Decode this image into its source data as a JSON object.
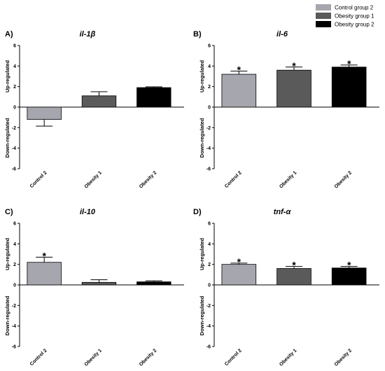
{
  "legend": [
    {
      "label": "Control group 2",
      "color": "#a6a6ae"
    },
    {
      "label": "Obesity group 1",
      "color": "#5a5a5a"
    },
    {
      "label": "Obesity group 2",
      "color": "#000000"
    }
  ],
  "chart_data": [
    {
      "type": "bar",
      "panel": "A)",
      "title": "il-1β",
      "categories": [
        "Control 2",
        "Obesity 1",
        "Obesity 2"
      ],
      "values": [
        -1.2,
        1.1,
        1.9
      ],
      "errors": [
        0.65,
        0.4,
        0.08
      ],
      "significant": [
        false,
        false,
        false
      ],
      "colors": [
        "#a6a6ae",
        "#5a5a5a",
        "#000000"
      ],
      "ylabel_up": "Up-regulated",
      "ylabel_down": "Down-regulated",
      "ylim": [
        -6,
        6
      ],
      "yticks": [
        6,
        4,
        2,
        0,
        -2,
        -4,
        -6
      ]
    },
    {
      "type": "bar",
      "panel": "B)",
      "title": "il-6",
      "categories": [
        "Control 2",
        "Obesity 1",
        "Obesity 2"
      ],
      "values": [
        3.2,
        3.6,
        3.9
      ],
      "errors": [
        0.3,
        0.3,
        0.2
      ],
      "significant": [
        true,
        true,
        true
      ],
      "colors": [
        "#a6a6ae",
        "#5a5a5a",
        "#000000"
      ],
      "ylabel_up": "Up-regulated",
      "ylabel_down": "Down-regulated",
      "ylim": [
        -6,
        6
      ],
      "yticks": [
        6,
        4,
        2,
        0,
        -2,
        -4,
        -6
      ]
    },
    {
      "type": "bar",
      "panel": "C)",
      "title": "il-10",
      "categories": [
        "Control 2",
        "Obesity 1",
        "Obesity 2"
      ],
      "values": [
        2.2,
        0.25,
        0.3
      ],
      "errors": [
        0.5,
        0.25,
        0.1
      ],
      "significant": [
        true,
        false,
        false
      ],
      "colors": [
        "#a6a6ae",
        "#5a5a5a",
        "#000000"
      ],
      "ylabel_up": "Up-regulated",
      "ylabel_down": "Down-regulated",
      "ylim": [
        -6,
        6
      ],
      "yticks": [
        6,
        4,
        2,
        0,
        -2,
        -4,
        -6
      ]
    },
    {
      "type": "bar",
      "panel": "D)",
      "title": "tnf-α",
      "categories": [
        "Control 2",
        "Obesity 1",
        "Obesity 2"
      ],
      "values": [
        2.0,
        1.6,
        1.65
      ],
      "errors": [
        0.12,
        0.2,
        0.15
      ],
      "significant": [
        true,
        true,
        true
      ],
      "colors": [
        "#a6a6ae",
        "#5a5a5a",
        "#000000"
      ],
      "ylabel_up": "Up-regulated",
      "ylabel_down": "Down-regulated",
      "ylim": [
        -6,
        6
      ],
      "yticks": [
        6,
        4,
        2,
        0,
        -2,
        -4,
        -6
      ]
    }
  ]
}
